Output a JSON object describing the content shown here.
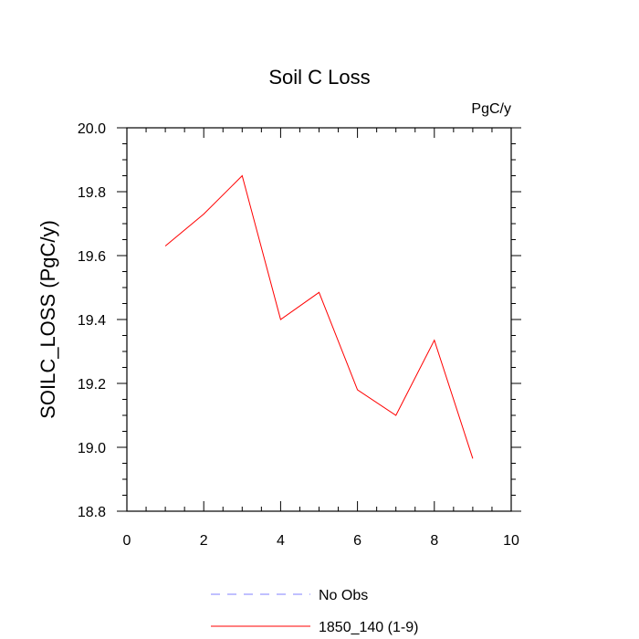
{
  "chart_data": {
    "type": "line",
    "title": "Soil C Loss",
    "units_label": "PgC/y",
    "xlabel": "",
    "ylabel": "SOILC_LOSS  (PgC/y)",
    "xlim": [
      0,
      10
    ],
    "ylim": [
      18.8,
      20.0
    ],
    "x_ticks": [
      0,
      2,
      4,
      6,
      8,
      10
    ],
    "x_tick_labels": [
      "0",
      "2",
      "4",
      "6",
      "8",
      "10"
    ],
    "y_ticks": [
      18.8,
      19.0,
      19.2,
      19.4,
      19.6,
      19.8,
      20.0
    ],
    "y_tick_labels": [
      "18.8",
      "19.0",
      "19.2",
      "19.4",
      "19.6",
      "19.8",
      "20.0"
    ],
    "grid": false,
    "legend_position": "bottom",
    "series": [
      {
        "name": "1850_140 (1-9)",
        "color": "#ff0000",
        "style": "solid",
        "x": [
          1,
          2,
          3,
          4,
          5,
          6,
          7,
          8,
          9
        ],
        "y": [
          19.63,
          19.73,
          19.85,
          19.4,
          19.485,
          19.18,
          19.1,
          19.335,
          18.965
        ]
      }
    ],
    "legend": [
      {
        "label": "No Obs",
        "color": "#8080ff",
        "style": "dashed"
      },
      {
        "label": "1850_140 (1-9)",
        "color": "#ff0000",
        "style": "solid"
      }
    ]
  }
}
